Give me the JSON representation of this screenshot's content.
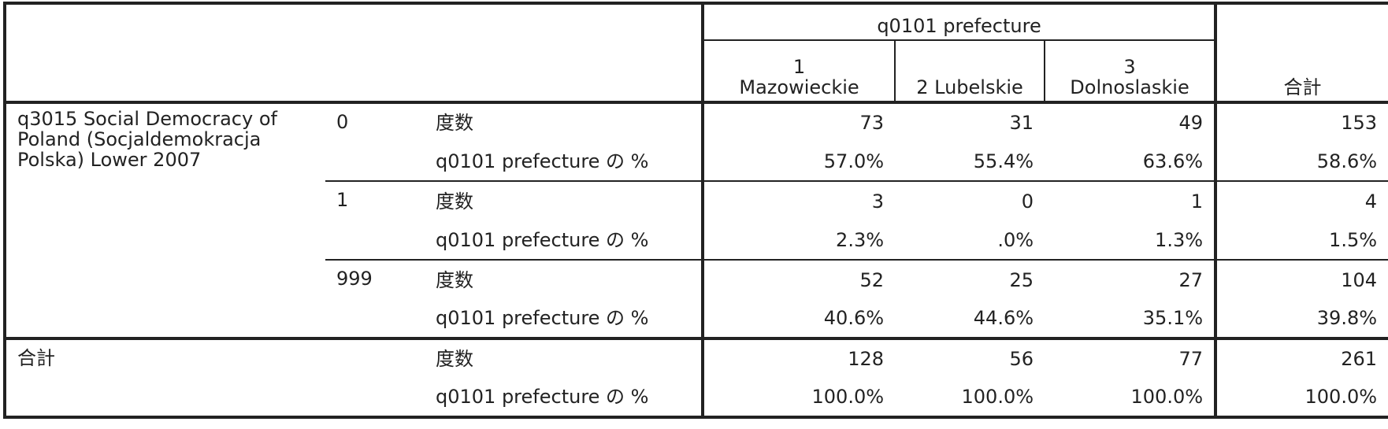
{
  "header": {
    "group_label": "q0101 prefecture",
    "columns": [
      "1\nMazowieckie",
      "2 Lubelskie",
      "3\nDolnoslaskie"
    ],
    "total": "合計"
  },
  "row_variable": "q3015 Social Democracy of Poland (Socjaldemokracja Polska) Lower 2007",
  "rows": [
    {
      "value": "0",
      "stats": [
        {
          "label": "度数",
          "cells": [
            "73",
            "31",
            "49",
            "153"
          ]
        },
        {
          "label": "q0101 prefecture の %",
          "cells": [
            "57.0%",
            "55.4%",
            "63.6%",
            "58.6%"
          ]
        }
      ]
    },
    {
      "value": "1",
      "stats": [
        {
          "label": "度数",
          "cells": [
            "3",
            "0",
            "1",
            "4"
          ]
        },
        {
          "label": "q0101 prefecture の %",
          "cells": [
            "2.3%",
            ".0%",
            "1.3%",
            "1.5%"
          ]
        }
      ]
    },
    {
      "value": "999",
      "stats": [
        {
          "label": "度数",
          "cells": [
            "52",
            "25",
            "27",
            "104"
          ]
        },
        {
          "label": "q0101 prefecture の %",
          "cells": [
            "40.6%",
            "44.6%",
            "35.1%",
            "39.8%"
          ]
        }
      ]
    }
  ],
  "total": {
    "label": "合計",
    "stats": [
      {
        "label": "度数",
        "cells": [
          "128",
          "56",
          "77",
          "261"
        ]
      },
      {
        "label": "q0101 prefecture の %",
        "cells": [
          "100.0%",
          "100.0%",
          "100.0%",
          "100.0%"
        ]
      }
    ]
  }
}
